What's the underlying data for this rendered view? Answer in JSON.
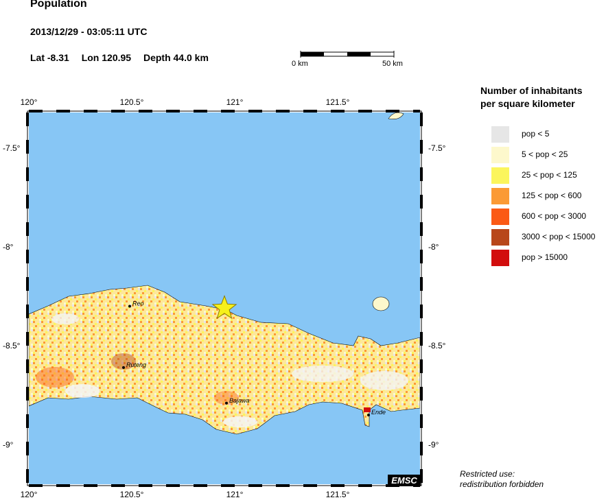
{
  "header": {
    "title": "Population",
    "datetime": "2013/12/29 - 03:05:11 UTC",
    "lat": "Lat -8.31",
    "lon": "Lon 120.95",
    "depth": "Depth  44.0 km"
  },
  "scale_bar": {
    "start_label": "0 km",
    "end_label": "50 km"
  },
  "map": {
    "x_ticks": [
      "120°",
      "120.5°",
      "121°",
      "121.5°"
    ],
    "y_ticks": [
      "-7.5°",
      "-8°",
      "-8.5°",
      "-9°"
    ],
    "epicenter": {
      "lat": -8.31,
      "lon": 120.95
    },
    "cities": [
      {
        "name": "Reo",
        "lon": 120.49,
        "lat": -8.3
      },
      {
        "name": "Ruteng",
        "lon": 120.46,
        "lat": -8.61
      },
      {
        "name": "Bajawa",
        "lon": 120.96,
        "lat": -8.79
      },
      {
        "name": "Ende",
        "lon": 121.65,
        "lat": -8.85
      }
    ],
    "sea_color": "#87c6f5"
  },
  "legend": {
    "title_line1": "Number of inhabitants",
    "title_line2": "per square kilometer",
    "items": [
      {
        "label": "pop < 5",
        "color": "#e6e6e6"
      },
      {
        "label": "5 < pop < 25",
        "color": "#fdf8cc"
      },
      {
        "label": "25 < pop < 125",
        "color": "#fbf55c"
      },
      {
        "label": "125 < pop < 600",
        "color": "#fb9a35"
      },
      {
        "label": "600 < pop < 3000",
        "color": "#fb5a15"
      },
      {
        "label": "3000 < pop < 15000",
        "color": "#b8471a"
      },
      {
        "label": "pop > 15000",
        "color": "#d20d0d"
      }
    ]
  },
  "footer": {
    "emsc": "EMSC",
    "restricted_line1": "Restricted use:",
    "restricted_line2": "redistribution forbidden"
  }
}
